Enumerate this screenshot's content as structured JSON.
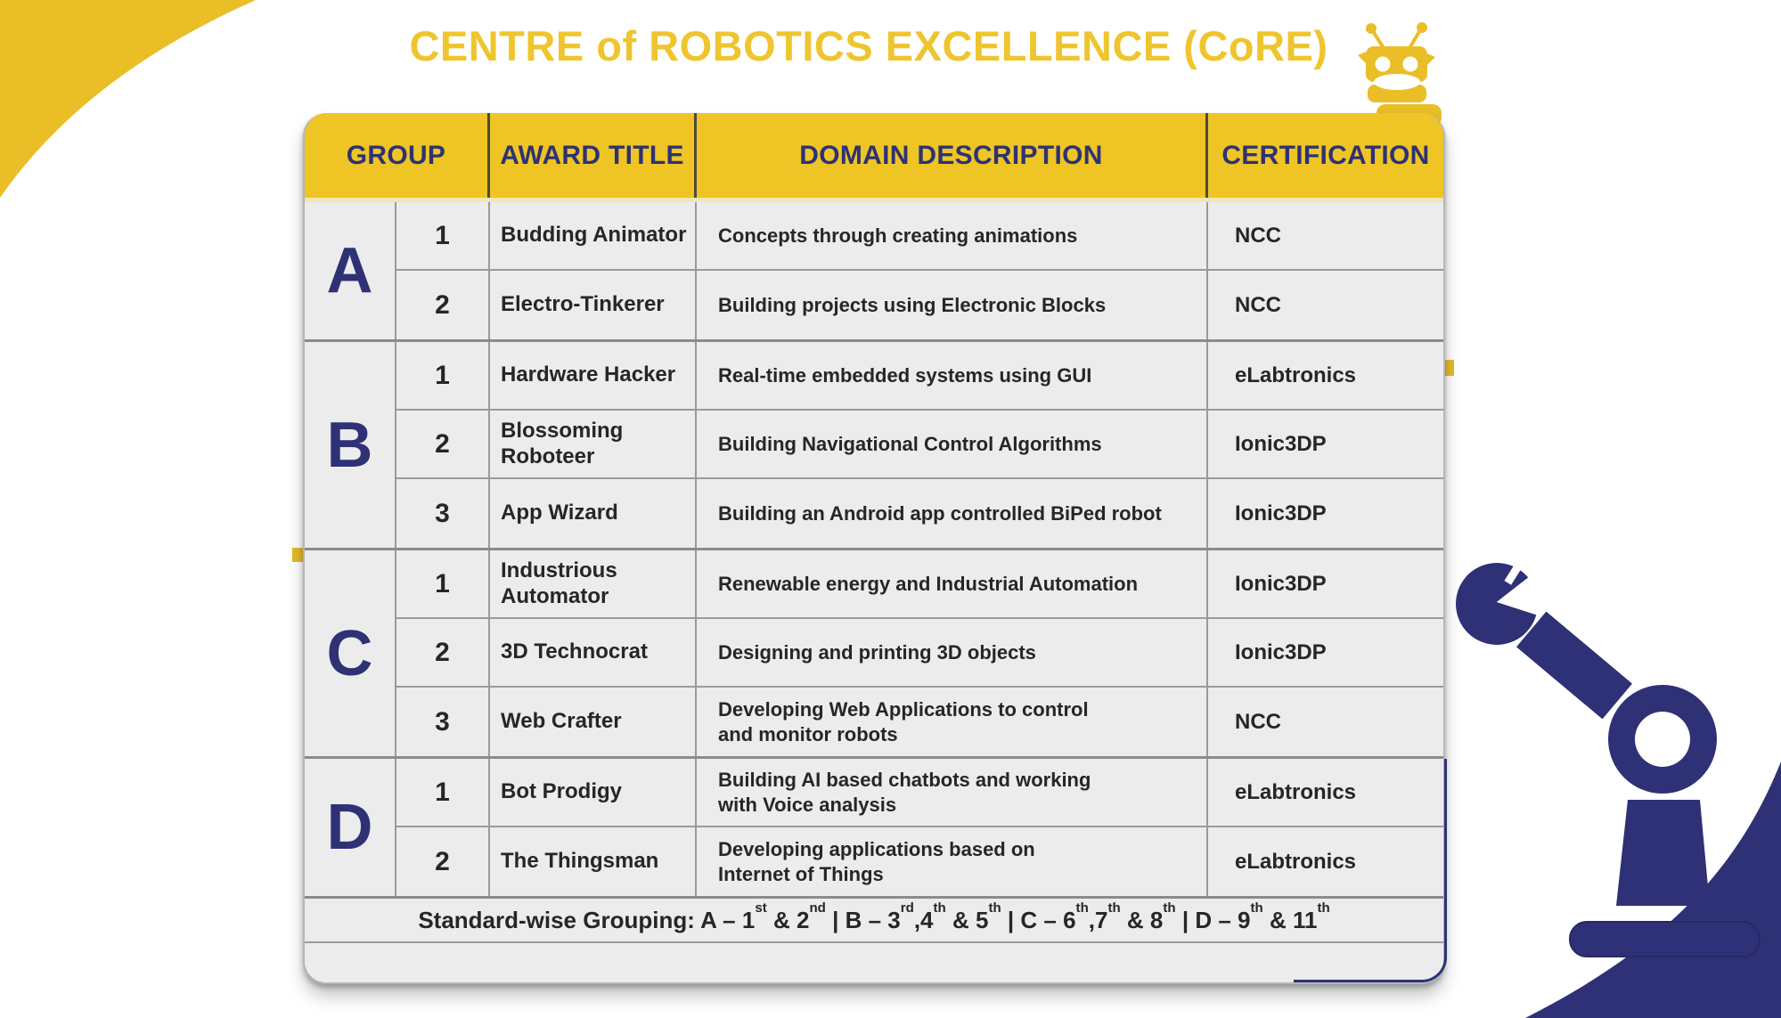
{
  "title": "CENTRE of ROBOTICS EXCELLENCE (CoRE)",
  "colors": {
    "yellow": "#EEC524",
    "navy": "#2E3274",
    "row_background": "#ECECEC",
    "grid_line": "#9A9A9A",
    "body_text": "#262626"
  },
  "table": {
    "headers": [
      "GROUP",
      "AWARD TITLE",
      "DOMAIN DESCRIPTION",
      "CERTIFICATION"
    ],
    "groups": [
      {
        "letter": "A",
        "rows": [
          {
            "num": "1",
            "award": "Budding Animator",
            "domain": "Concepts through creating animations",
            "cert": "NCC"
          },
          {
            "num": "2",
            "award": "Electro-Tinkerer",
            "domain": "Building projects using Electronic Blocks",
            "cert": "NCC"
          }
        ]
      },
      {
        "letter": "B",
        "rows": [
          {
            "num": "1",
            "award": "Hardware Hacker",
            "domain": "Real-time embedded systems using GUI",
            "cert": "eLabtronics"
          },
          {
            "num": "2",
            "award": "Blossoming\nRoboteer",
            "domain": "Building Navigational Control Algorithms",
            "cert": "Ionic3DP"
          },
          {
            "num": "3",
            "award": "App Wizard",
            "domain": "Building an Android app controlled BiPed robot",
            "cert": "Ionic3DP"
          }
        ]
      },
      {
        "letter": "C",
        "rows": [
          {
            "num": "1",
            "award": "Industrious\nAutomator",
            "domain": "Renewable energy and Industrial Automation",
            "cert": "Ionic3DP"
          },
          {
            "num": "2",
            "award": "3D Technocrat",
            "domain": "Designing and printing 3D objects",
            "cert": "Ionic3DP"
          },
          {
            "num": "3",
            "award": "Web Crafter",
            "domain": "Developing Web Applications to control\nand monitor robots",
            "cert": "NCC"
          }
        ]
      },
      {
        "letter": "D",
        "rows": [
          {
            "num": "1",
            "award": "Bot Prodigy",
            "domain": "Building AI based chatbots and working\nwith Voice analysis",
            "cert": "eLabtronics"
          },
          {
            "num": "2",
            "award": "The Thingsman",
            "domain": "Developing applications based on\nInternet of Things",
            "cert": "eLabtronics"
          }
        ]
      }
    ],
    "grouping_note": [
      {
        "text": "Standard-wise Grouping: A – 1"
      },
      {
        "sup": "st"
      },
      {
        "text": " & 2"
      },
      {
        "sup": "nd"
      },
      {
        "text": " | B – 3"
      },
      {
        "sup": "rd"
      },
      {
        "text": ",4"
      },
      {
        "sup": "th"
      },
      {
        "text": " & 5"
      },
      {
        "sup": "th"
      },
      {
        "text": " | C – 6"
      },
      {
        "sup": "th"
      },
      {
        "text": ",7"
      },
      {
        "sup": "th"
      },
      {
        "text": " & 8"
      },
      {
        "sup": "th"
      },
      {
        "text": " | D – 9"
      },
      {
        "sup": "th"
      },
      {
        "text": " & 11"
      },
      {
        "sup": "th"
      }
    ]
  },
  "icons": {
    "robot_head": "robot-head-icon",
    "robot_arm": "robot-arm-graphic"
  }
}
